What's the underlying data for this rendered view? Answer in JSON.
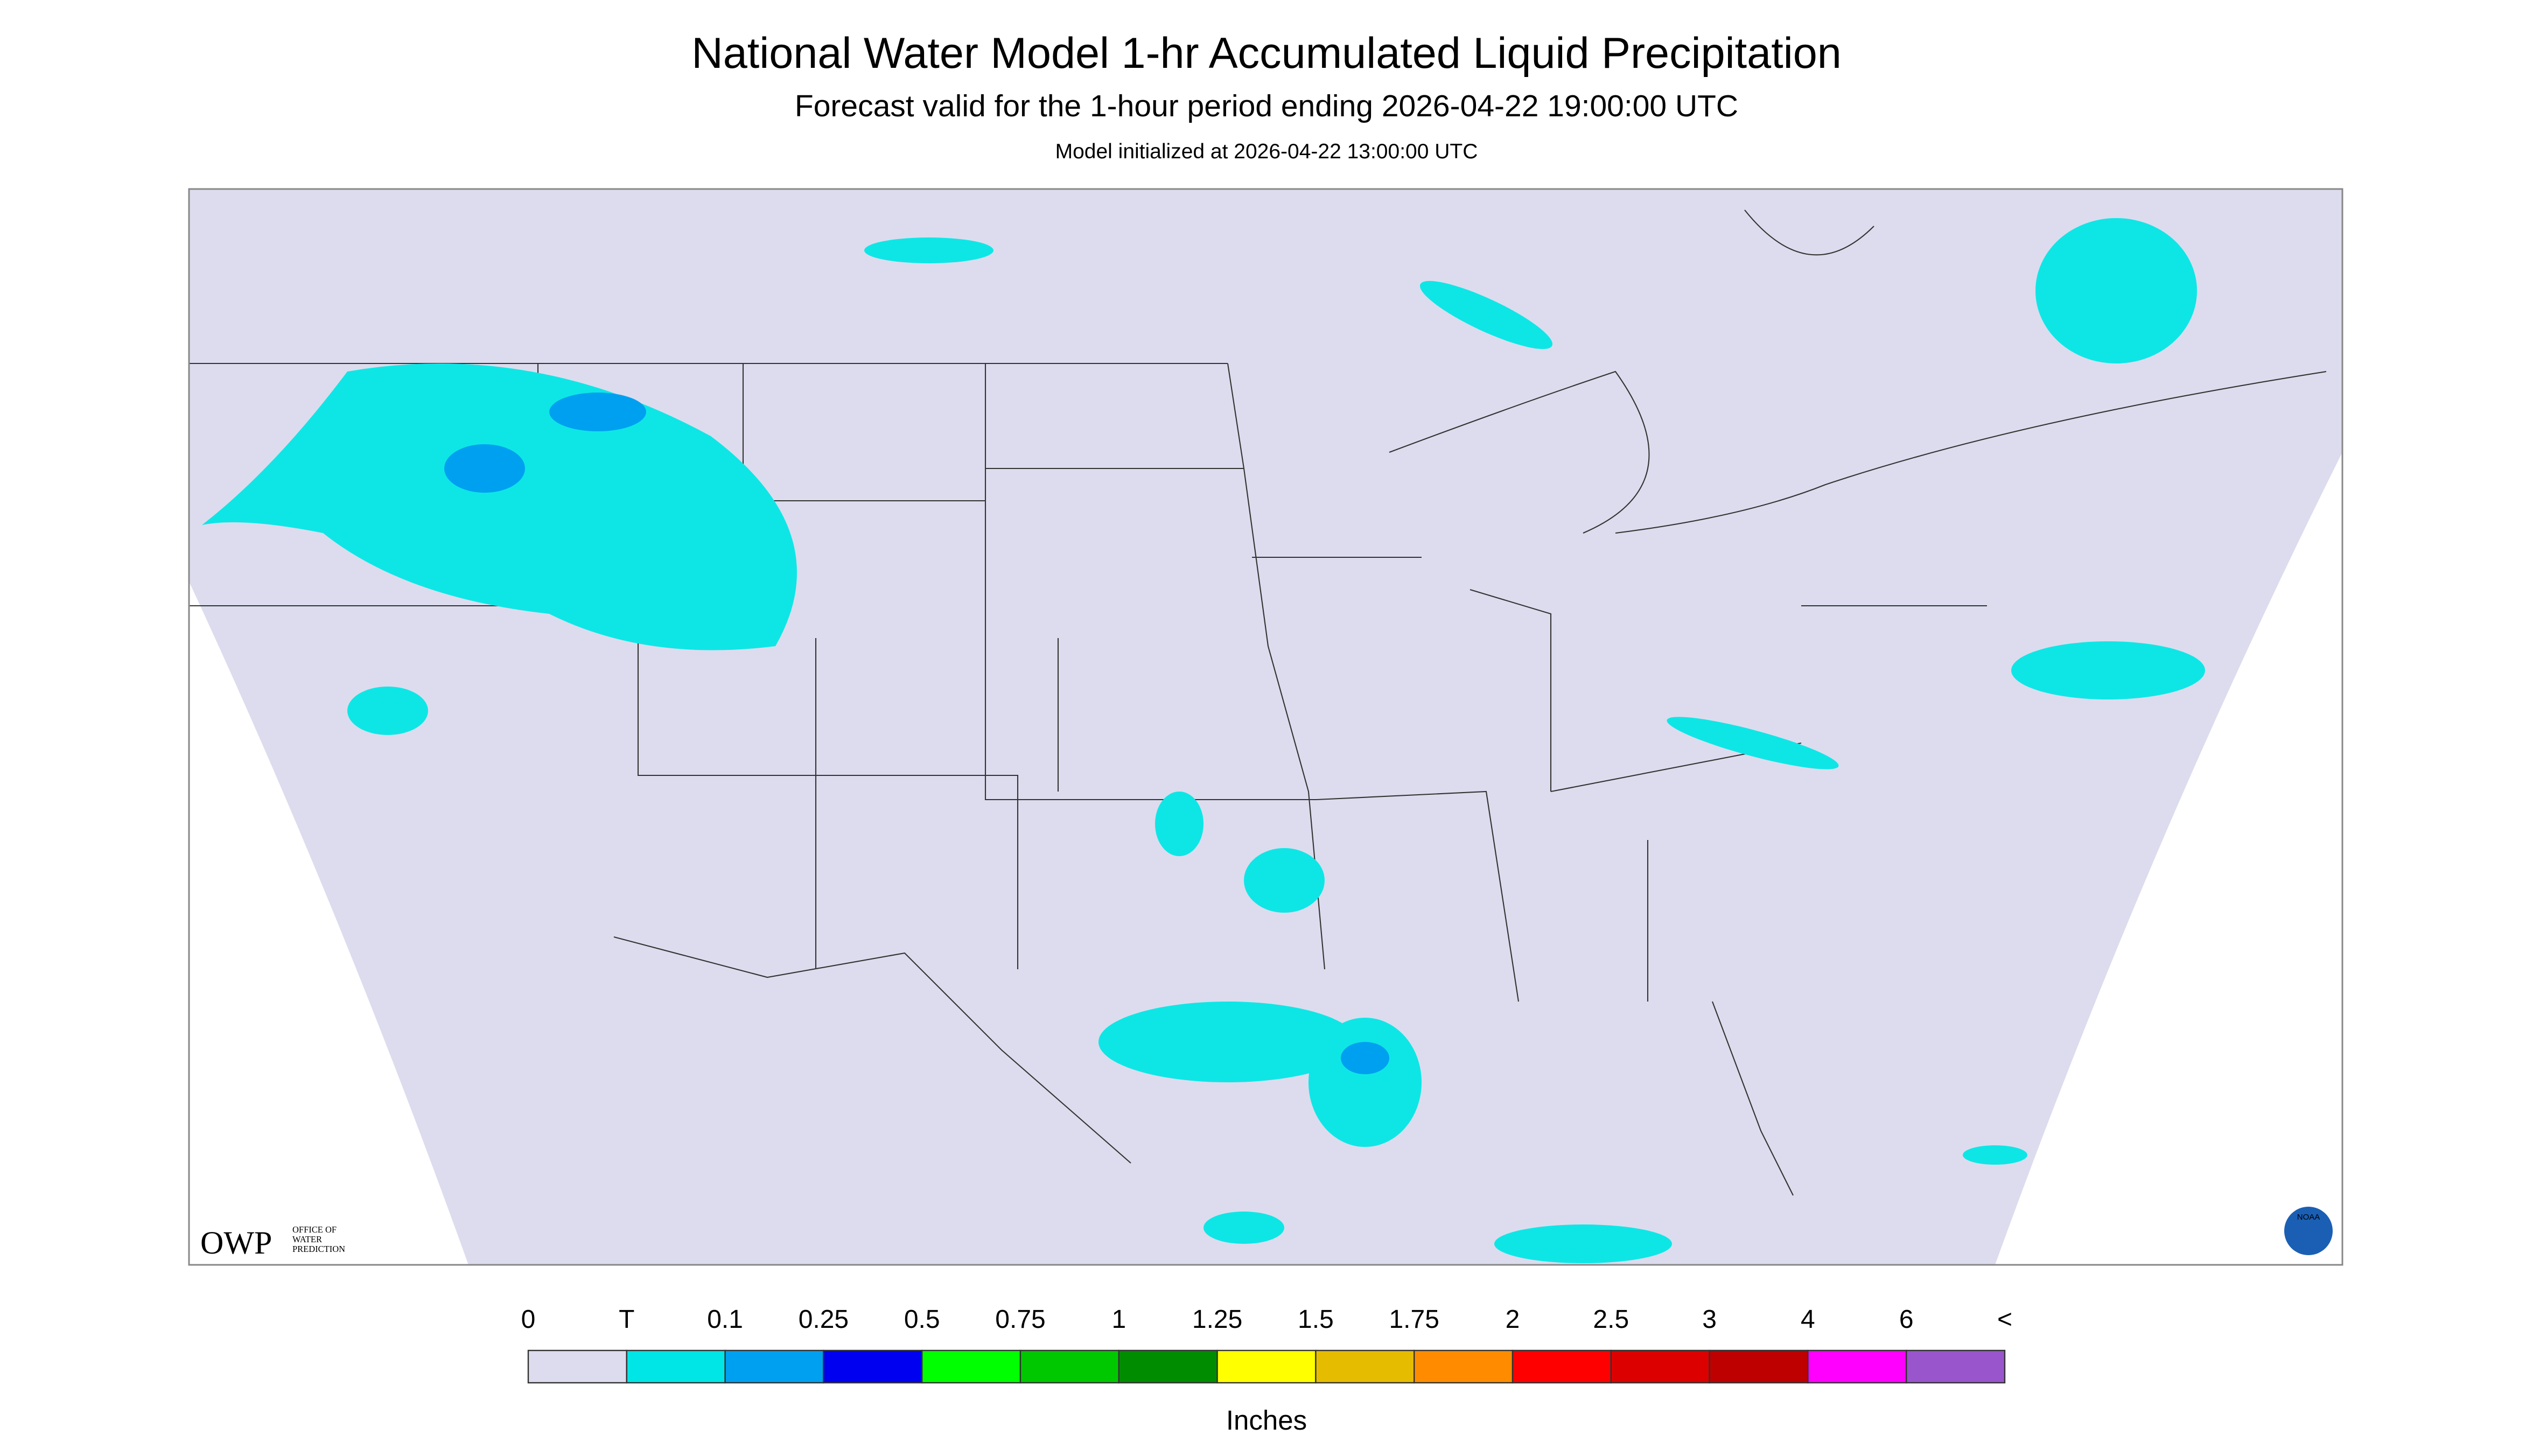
{
  "header": {
    "title": "National Water Model 1-hr Accumulated Liquid Precipitation",
    "subtitle": "Forecast valid for the 1-hour period ending 2026-04-22 19:00:00 UTC",
    "init": "Model initialized at 2026-04-22 13:00:00 UTC"
  },
  "logos": {
    "owp": "OWP",
    "owp_lines": [
      "OFFICE OF",
      "WATER",
      "PREDICTION"
    ],
    "noaa": "NOAA"
  },
  "legend": {
    "labels": [
      "0",
      "T",
      "0.1",
      "0.25",
      "0.5",
      "0.75",
      "1",
      "1.25",
      "1.5",
      "1.75",
      "2",
      "2.5",
      "3",
      "4",
      "6",
      "<"
    ],
    "colors": [
      "#dcdcee",
      "#00e6e6",
      "#00a0f0",
      "#0000f0",
      "#00ff00",
      "#00c800",
      "#008c00",
      "#ffff00",
      "#e6bc00",
      "#ff8c00",
      "#ff0000",
      "#dc0000",
      "#be0000",
      "#ff00ff",
      "#9955cc"
    ],
    "units": "Inches"
  }
}
